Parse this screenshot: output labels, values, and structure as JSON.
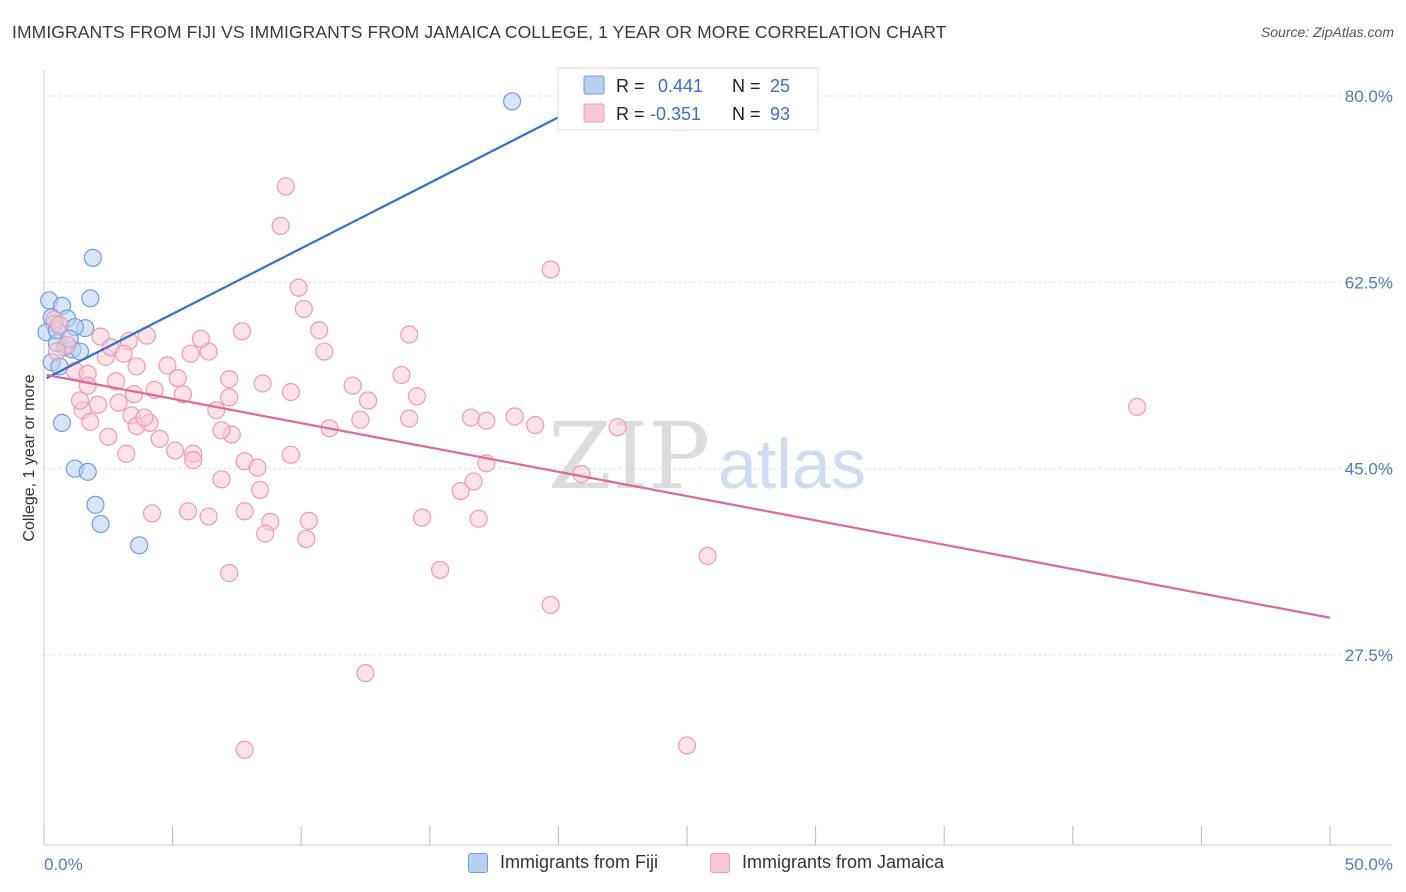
{
  "title": "IMMIGRANTS FROM FIJI VS IMMIGRANTS FROM JAMAICA COLLEGE, 1 YEAR OR MORE CORRELATION CHART",
  "source": "Source: ZipAtlas.com",
  "watermark": {
    "zip": "ZIP",
    "atlas": "atlas"
  },
  "chart_data": {
    "type": "scatter",
    "xlabel": "",
    "ylabel": "College, 1 year or more",
    "xlim": [
      0,
      50
    ],
    "ylim": [
      10,
      82
    ],
    "x_tick_labels": [
      {
        "value": 0,
        "label": "0.0%"
      },
      {
        "value": 50,
        "label": "50.0%"
      }
    ],
    "y_ticks": [
      {
        "value": 27.5,
        "label": "27.5%"
      },
      {
        "value": 45.0,
        "label": "45.0%"
      },
      {
        "value": 62.5,
        "label": "62.5%"
      },
      {
        "value": 80.0,
        "label": "80.0%"
      }
    ],
    "x_minor_ticks": [
      0,
      5,
      10,
      15,
      20,
      25,
      30,
      35,
      40,
      45,
      50
    ],
    "grid": true,
    "legend": {
      "placement": "top-center",
      "entries": [
        {
          "r_label": "R =",
          "r_value": "0.441",
          "n_label": "N =",
          "n_value": "25"
        },
        {
          "r_label": "R =",
          "r_value": "-0.351",
          "n_label": "N =",
          "n_value": "93"
        }
      ]
    },
    "series": [
      {
        "name": "Immigrants from Fiji",
        "color": "#6f9ee0",
        "fill": "#b9d0f1",
        "trend": {
          "x": [
            0.1,
            20.0
          ],
          "y": [
            53.5,
            78.0
          ],
          "color": "#2f6fcf"
        },
        "points": [
          [
            18.2,
            79.5
          ],
          [
            1.9,
            64.8
          ],
          [
            0.2,
            60.8
          ],
          [
            0.7,
            60.3
          ],
          [
            1.8,
            61.0
          ],
          [
            0.3,
            59.2
          ],
          [
            0.4,
            58.6
          ],
          [
            0.9,
            59.1
          ],
          [
            1.6,
            58.2
          ],
          [
            1.2,
            58.3
          ],
          [
            0.1,
            57.8
          ],
          [
            0.8,
            56.4
          ],
          [
            0.5,
            56.8
          ],
          [
            1.1,
            56.2
          ],
          [
            1.4,
            56.0
          ],
          [
            0.3,
            55.0
          ],
          [
            0.6,
            54.6
          ],
          [
            0.7,
            49.3
          ],
          [
            1.2,
            45.0
          ],
          [
            1.7,
            44.7
          ],
          [
            2.0,
            41.6
          ],
          [
            2.2,
            39.8
          ],
          [
            3.7,
            37.8
          ],
          [
            0.5,
            58.0
          ],
          [
            1.0,
            57.2
          ]
        ]
      },
      {
        "name": "Immigrants from Jamaica",
        "color": "#ee9ab5",
        "fill": "#f8c8d6",
        "trend": {
          "x": [
            0.1,
            50.0
          ],
          "y": [
            53.8,
            31.0
          ],
          "color": "#e0679a"
        },
        "points": [
          [
            9.4,
            71.5
          ],
          [
            9.2,
            67.8
          ],
          [
            19.7,
            63.7
          ],
          [
            9.9,
            62.0
          ],
          [
            0.4,
            59.0
          ],
          [
            10.7,
            58.0
          ],
          [
            14.2,
            57.6
          ],
          [
            0.6,
            58.5
          ],
          [
            2.2,
            57.4
          ],
          [
            3.3,
            57.0
          ],
          [
            0.9,
            56.6
          ],
          [
            10.9,
            56.0
          ],
          [
            6.4,
            56.0
          ],
          [
            5.7,
            55.8
          ],
          [
            4.8,
            54.7
          ],
          [
            2.4,
            55.5
          ],
          [
            0.5,
            56.0
          ],
          [
            3.6,
            54.6
          ],
          [
            1.2,
            54.2
          ],
          [
            1.7,
            53.9
          ],
          [
            13.9,
            53.8
          ],
          [
            7.2,
            53.4
          ],
          [
            8.5,
            53.0
          ],
          [
            5.2,
            53.5
          ],
          [
            4.3,
            52.4
          ],
          [
            1.7,
            52.8
          ],
          [
            2.8,
            53.2
          ],
          [
            3.5,
            52.0
          ],
          [
            7.2,
            51.7
          ],
          [
            9.6,
            52.2
          ],
          [
            12.6,
            51.4
          ],
          [
            14.5,
            51.8
          ],
          [
            5.4,
            52.0
          ],
          [
            2.1,
            51.0
          ],
          [
            2.9,
            51.2
          ],
          [
            1.5,
            50.5
          ],
          [
            6.7,
            50.5
          ],
          [
            3.4,
            50.0
          ],
          [
            1.8,
            49.4
          ],
          [
            3.6,
            49.0
          ],
          [
            4.1,
            49.3
          ],
          [
            7.3,
            48.2
          ],
          [
            6.9,
            48.6
          ],
          [
            2.5,
            48.0
          ],
          [
            4.5,
            47.8
          ],
          [
            5.1,
            46.7
          ],
          [
            14.2,
            49.7
          ],
          [
            16.6,
            49.8
          ],
          [
            12.3,
            49.6
          ],
          [
            17.2,
            49.5
          ],
          [
            19.1,
            49.1
          ],
          [
            22.3,
            48.9
          ],
          [
            11.1,
            48.8
          ],
          [
            5.8,
            46.4
          ],
          [
            5.8,
            45.8
          ],
          [
            9.6,
            46.3
          ],
          [
            7.8,
            45.7
          ],
          [
            3.2,
            46.4
          ],
          [
            8.3,
            45.1
          ],
          [
            6.9,
            44.0
          ],
          [
            17.2,
            45.5
          ],
          [
            16.2,
            42.9
          ],
          [
            20.9,
            44.5
          ],
          [
            16.7,
            43.8
          ],
          [
            8.4,
            43.0
          ],
          [
            4.2,
            40.8
          ],
          [
            5.6,
            41.0
          ],
          [
            6.4,
            40.5
          ],
          [
            7.8,
            41.0
          ],
          [
            8.8,
            40.0
          ],
          [
            10.3,
            40.1
          ],
          [
            14.7,
            40.4
          ],
          [
            16.9,
            40.3
          ],
          [
            8.6,
            38.9
          ],
          [
            10.2,
            38.4
          ],
          [
            7.2,
            35.2
          ],
          [
            15.4,
            35.5
          ],
          [
            19.7,
            32.2
          ],
          [
            12.5,
            25.8
          ],
          [
            7.8,
            18.6
          ],
          [
            25.8,
            36.8
          ],
          [
            42.5,
            50.8
          ],
          [
            25.0,
            19.0
          ],
          [
            4.0,
            57.5
          ],
          [
            3.9,
            49.8
          ],
          [
            18.3,
            49.9
          ],
          [
            2.6,
            56.4
          ],
          [
            3.1,
            55.8
          ],
          [
            10.1,
            60.0
          ],
          [
            6.1,
            57.2
          ],
          [
            7.7,
            57.9
          ],
          [
            12.0,
            52.8
          ],
          [
            1.4,
            51.4
          ]
        ]
      }
    ]
  }
}
